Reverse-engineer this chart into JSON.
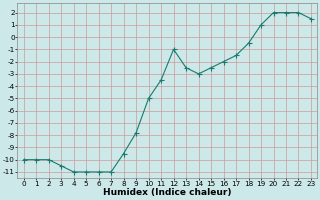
{
  "x": [
    0,
    1,
    2,
    3,
    4,
    5,
    6,
    7,
    8,
    9,
    10,
    11,
    12,
    13,
    14,
    15,
    16,
    17,
    18,
    19,
    20,
    21,
    22,
    23
  ],
  "y": [
    -10,
    -10,
    -10,
    -10.5,
    -11,
    -11,
    -11,
    -11,
    -9.5,
    -7.8,
    -5,
    -3.5,
    -1,
    -2.5,
    -3,
    -2.5,
    -2,
    -1.5,
    -0.5,
    1,
    2,
    2,
    2,
    1.5
  ],
  "line_color": "#1a7a6e",
  "marker": "s",
  "marker_size": 1.8,
  "bg_color": "#cce8e8",
  "grid_color": "#aacccc",
  "grid_major_color": "#cc9999",
  "xlabel": "Humidex (Indice chaleur)",
  "ylim": [
    -11.5,
    2.8
  ],
  "xlim": [
    -0.5,
    23.5
  ],
  "yticks": [
    2,
    1,
    0,
    -1,
    -2,
    -3,
    -4,
    -5,
    -6,
    -7,
    -8,
    -9,
    -10,
    -11
  ],
  "xticks": [
    0,
    1,
    2,
    3,
    4,
    5,
    6,
    7,
    8,
    9,
    10,
    11,
    12,
    13,
    14,
    15,
    16,
    17,
    18,
    19,
    20,
    21,
    22,
    23
  ],
  "tick_fontsize": 5.2,
  "xlabel_fontsize": 6.5,
  "line_width": 0.8
}
